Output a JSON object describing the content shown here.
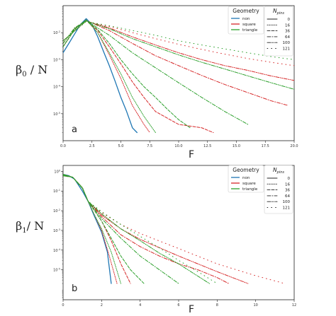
{
  "chart_data": [
    {
      "type": "line",
      "panel_label": "a",
      "ylabel_main": "β",
      "ylabel_sub": "0",
      "ylabel_tail": " / N",
      "xlabel": "F",
      "xlim": [
        0,
        20
      ],
      "x_ticks": [
        "0.0",
        "2.5",
        "5.0",
        "7.5",
        "10.0",
        "12.5",
        "15.0",
        "17.5",
        "20.0"
      ],
      "x_tick_values": [
        0,
        2.5,
        5,
        7.5,
        10,
        12.5,
        15,
        17.5,
        20
      ],
      "y_scale": "log",
      "ylim": [
        1e-06,
        0.1
      ],
      "y_ticks": [
        {
          "v": 0.01,
          "base": "10",
          "exp": "-2"
        },
        {
          "v": 0.001,
          "base": "10",
          "exp": "-3"
        },
        {
          "v": 0.0001,
          "base": "10",
          "exp": "-4"
        },
        {
          "v": 1e-05,
          "base": "10",
          "exp": "-5"
        }
      ],
      "legend_geometry_title": "Geometry",
      "legend_pins_title": "N",
      "legend_pins_sub": "pins",
      "series": [
        {
          "geometry": "non",
          "pins": "0",
          "color": "#1f77b4",
          "dash": "solid",
          "x": [
            0,
            0.5,
            1,
            1.5,
            2,
            2.5,
            3,
            3.5,
            4,
            4.5,
            5,
            5.5,
            6,
            6.4
          ],
          "y": [
            0.0018,
            0.004,
            0.009,
            0.02,
            0.033,
            0.02,
            0.007,
            0.002,
            0.0006,
            0.00016,
            4e-05,
            1.2e-05,
            3e-06,
            2e-06
          ]
        },
        {
          "geometry": "square",
          "pins": "16",
          "color": "#d62728",
          "dash": "dotted",
          "x": [
            0,
            1,
            2,
            3,
            4,
            5,
            6,
            7,
            7.5
          ],
          "y": [
            0.003,
            0.013,
            0.03,
            0.01,
            0.0015,
            0.0002,
            2e-05,
            4e-06,
            2e-06
          ]
        },
        {
          "geometry": "square",
          "pins": "36",
          "color": "#d62728",
          "dash": "dashed",
          "x": [
            0,
            1,
            2,
            3,
            4,
            5,
            6,
            7,
            8,
            10,
            12,
            13
          ],
          "y": [
            0.003,
            0.014,
            0.028,
            0.012,
            0.003,
            0.0007,
            0.00015,
            4e-05,
            1.2e-05,
            4e-06,
            3e-06,
            2e-06
          ]
        },
        {
          "geometry": "square",
          "pins": "64",
          "color": "#d62728",
          "dash": "dashdot",
          "x": [
            0,
            1,
            2,
            4,
            6,
            8,
            10,
            12,
            14,
            16,
            18,
            19.5
          ],
          "y": [
            0.004,
            0.015,
            0.028,
            0.012,
            0.004,
            0.0014,
            0.0006,
            0.00026,
            0.00012,
            6e-05,
            3e-05,
            2e-05
          ]
        },
        {
          "geometry": "square",
          "pins": "100",
          "color": "#d62728",
          "dash": "dashdotdot",
          "x": [
            0,
            2,
            4,
            6,
            8,
            10,
            12,
            14,
            16,
            18,
            20
          ],
          "y": [
            0.005,
            0.027,
            0.015,
            0.007,
            0.0035,
            0.0018,
            0.001,
            0.0006,
            0.0004,
            0.00025,
            0.00017
          ]
        },
        {
          "geometry": "square",
          "pins": "121",
          "color": "#d62728",
          "dash": "sparse",
          "x": [
            0,
            2,
            4,
            6,
            8,
            10,
            12,
            14,
            16,
            18,
            20
          ],
          "y": [
            0.005,
            0.026,
            0.017,
            0.01,
            0.006,
            0.0037,
            0.0024,
            0.0016,
            0.0011,
            0.0008,
            0.0006
          ]
        },
        {
          "geometry": "triangle",
          "pins": "16",
          "color": "#2ca02c",
          "dash": "dotted",
          "x": [
            0,
            1,
            2,
            3,
            4,
            5,
            6,
            7,
            8
          ],
          "y": [
            0.003,
            0.013,
            0.03,
            0.01,
            0.0018,
            0.0003,
            4e-05,
            8e-06,
            2e-06
          ]
        },
        {
          "geometry": "triangle",
          "pins": "36",
          "color": "#2ca02c",
          "dash": "dashed",
          "x": [
            0,
            1,
            2,
            3,
            4,
            5,
            6,
            7,
            8,
            9,
            10,
            11
          ],
          "y": [
            0.003,
            0.014,
            0.028,
            0.013,
            0.004,
            0.001,
            0.0003,
            0.0001,
            4e-05,
            1.5e-05,
            6e-06,
            3e-06
          ]
        },
        {
          "geometry": "triangle",
          "pins": "64",
          "color": "#2ca02c",
          "dash": "dashdot",
          "x": [
            0,
            1,
            2,
            4,
            6,
            8,
            10,
            12,
            14,
            16
          ],
          "y": [
            0.004,
            0.015,
            0.028,
            0.008,
            0.0018,
            0.0005,
            0.00014,
            4e-05,
            1.2e-05,
            4e-06
          ]
        },
        {
          "geometry": "triangle",
          "pins": "100",
          "color": "#2ca02c",
          "dash": "dashdotdot",
          "x": [
            0,
            2,
            4,
            6,
            8,
            10,
            12,
            14,
            16,
            18,
            20
          ],
          "y": [
            0.005,
            0.027,
            0.014,
            0.006,
            0.003,
            0.0015,
            0.0008,
            0.00045,
            0.00025,
            0.00014,
            8e-05
          ]
        },
        {
          "geometry": "triangle",
          "pins": "121",
          "color": "#2ca02c",
          "dash": "sparse",
          "x": [
            0,
            2,
            4,
            6,
            8,
            10,
            12,
            14,
            16,
            18,
            20
          ],
          "y": [
            0.005,
            0.026,
            0.018,
            0.012,
            0.008,
            0.005,
            0.0035,
            0.0025,
            0.0018,
            0.0013,
            0.001
          ]
        }
      ]
    },
    {
      "type": "line",
      "panel_label": "b",
      "ylabel_main": "β",
      "ylabel_sub": "1",
      "ylabel_tail": "/ N",
      "xlabel": "F",
      "xlim": [
        0,
        12
      ],
      "x_ticks": [
        "0",
        "2",
        "4",
        "6",
        "8",
        "10",
        "12"
      ],
      "x_tick_values": [
        0,
        2,
        4,
        6,
        8,
        10,
        12
      ],
      "y_scale": "log",
      "ylim": [
        3e-07,
        2
      ],
      "y_ticks": [
        {
          "v": 1,
          "base": "10",
          "exp": "0"
        },
        {
          "v": 0.1,
          "base": "10",
          "exp": "-1"
        },
        {
          "v": 0.01,
          "base": "10",
          "exp": "-2"
        },
        {
          "v": 0.001,
          "base": "10",
          "exp": "-3"
        },
        {
          "v": 0.0001,
          "base": "10",
          "exp": "-4"
        },
        {
          "v": 1e-05,
          "base": "10",
          "exp": "-5"
        }
      ],
      "legend_geometry_title": "Geometry",
      "legend_pins_title": "N",
      "legend_pins_sub": "pins",
      "series": [
        {
          "geometry": "non",
          "pins": "0",
          "color": "#1f77b4",
          "dash": "solid",
          "x": [
            0,
            0.3,
            0.6,
            1,
            1.3,
            1.6,
            2,
            2.3,
            2.5
          ],
          "y": [
            0.7,
            0.6,
            0.4,
            0.1,
            0.03,
            0.006,
            0.0008,
            8e-05,
            2e-06
          ]
        },
        {
          "geometry": "square",
          "pins": "16",
          "color": "#d62728",
          "dash": "dotted",
          "x": [
            0,
            0.5,
            1,
            1.3,
            1.6,
            2,
            2.4,
            2.8
          ],
          "y": [
            0.7,
            0.5,
            0.14,
            0.03,
            0.007,
            0.001,
            5e-05,
            2e-06
          ]
        },
        {
          "geometry": "square",
          "pins": "36",
          "color": "#d62728",
          "dash": "dashed",
          "x": [
            0,
            0.5,
            1,
            1.3,
            2,
            2.5,
            3,
            3.5
          ],
          "y": [
            0.7,
            0.5,
            0.14,
            0.03,
            0.003,
            0.0003,
            2e-05,
            2e-06
          ]
        },
        {
          "geometry": "square",
          "pins": "64",
          "color": "#d62728",
          "dash": "dashdot",
          "x": [
            0,
            0.5,
            1,
            1.3,
            2,
            3,
            4,
            5,
            6,
            7,
            8,
            8.6
          ],
          "y": [
            0.65,
            0.5,
            0.14,
            0.03,
            0.005,
            0.0006,
            0.00015,
            5e-05,
            2e-05,
            1e-05,
            4e-06,
            2e-06
          ]
        },
        {
          "geometry": "square",
          "pins": "100",
          "color": "#d62728",
          "dash": "dashdotdot",
          "x": [
            0,
            0.5,
            1,
            1.3,
            2,
            3,
            4,
            6,
            8,
            9.6
          ],
          "y": [
            0.6,
            0.5,
            0.15,
            0.03,
            0.006,
            0.0012,
            0.00035,
            5e-05,
            8e-06,
            2e-06
          ]
        },
        {
          "geometry": "square",
          "pins": "121",
          "color": "#d62728",
          "dash": "sparse",
          "x": [
            0,
            0.5,
            1,
            1.3,
            2,
            3,
            4,
            6,
            8,
            10,
            11.5
          ],
          "y": [
            0.6,
            0.5,
            0.15,
            0.03,
            0.008,
            0.002,
            0.0007,
            0.00012,
            2e-05,
            5e-06,
            2e-06
          ]
        },
        {
          "geometry": "triangle",
          "pins": "16",
          "color": "#2ca02c",
          "dash": "dotted",
          "x": [
            0,
            0.5,
            1,
            1.3,
            1.6,
            2,
            2.5,
            3
          ],
          "y": [
            0.7,
            0.5,
            0.14,
            0.03,
            0.007,
            0.0012,
            8e-05,
            2e-06
          ]
        },
        {
          "geometry": "triangle",
          "pins": "36",
          "color": "#2ca02c",
          "dash": "dashed",
          "x": [
            0,
            0.5,
            1,
            1.3,
            2,
            2.5,
            3,
            3.5,
            4.2
          ],
          "y": [
            0.7,
            0.5,
            0.14,
            0.03,
            0.003,
            0.0004,
            5e-05,
            1e-05,
            2e-06
          ]
        },
        {
          "geometry": "triangle",
          "pins": "64",
          "color": "#2ca02c",
          "dash": "dashdot",
          "x": [
            0,
            0.5,
            1,
            1.3,
            2,
            3,
            4,
            5,
            6
          ],
          "y": [
            0.65,
            0.5,
            0.14,
            0.03,
            0.004,
            0.0004,
            5e-05,
            1e-05,
            2e-06
          ]
        },
        {
          "geometry": "triangle",
          "pins": "100",
          "color": "#2ca02c",
          "dash": "dashdotdot",
          "x": [
            0,
            0.5,
            1,
            1.3,
            2,
            3,
            4,
            5,
            6,
            7.6
          ],
          "y": [
            0.6,
            0.5,
            0.15,
            0.03,
            0.007,
            0.0012,
            0.0003,
            7e-05,
            2e-05,
            2e-06
          ]
        },
        {
          "geometry": "triangle",
          "pins": "121",
          "color": "#2ca02c",
          "dash": "sparse",
          "x": [
            0,
            0.5,
            1,
            1.3,
            2,
            3,
            4,
            5,
            6,
            7,
            8
          ],
          "y": [
            0.6,
            0.5,
            0.15,
            0.03,
            0.009,
            0.002,
            0.0005,
            0.00013,
            3e-05,
            8e-06,
            2e-06
          ]
        }
      ]
    }
  ],
  "legend": {
    "geometry_items": [
      {
        "label": "non",
        "color": "#1f77b4"
      },
      {
        "label": "square",
        "color": "#d62728"
      },
      {
        "label": "triangle",
        "color": "#2ca02c"
      }
    ],
    "pins_items": [
      {
        "label": "0",
        "dash": "solid"
      },
      {
        "label": "16",
        "dash": "dotted"
      },
      {
        "label": "36",
        "dash": "dashed"
      },
      {
        "label": "64",
        "dash": "dashdot"
      },
      {
        "label": "100",
        "dash": "dashdotdot"
      },
      {
        "label": "121",
        "dash": "sparse"
      }
    ]
  }
}
